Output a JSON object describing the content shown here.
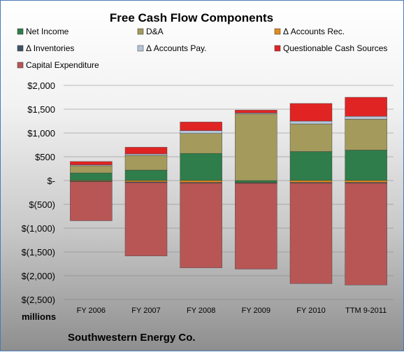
{
  "chart_data": {
    "type": "bar",
    "stacked": true,
    "title": "Free Cash Flow Components",
    "units_label": "millions",
    "company": "Southwestern Energy Co.",
    "categories": [
      "FY 2006",
      "FY 2007",
      "FY 2008",
      "FY 2009",
      "FY 2010",
      "TTM 9-2011"
    ],
    "ylim": [
      -2500,
      2000
    ],
    "yticks": [
      {
        "value": 2000,
        "label": "$2,000"
      },
      {
        "value": 1500,
        "label": "$1,500"
      },
      {
        "value": 1000,
        "label": "$1,000"
      },
      {
        "value": 500,
        "label": "$500"
      },
      {
        "value": 0,
        "label": "$-"
      },
      {
        "value": -500,
        "label": "$(500)"
      },
      {
        "value": -1000,
        "label": "$(1,000)"
      },
      {
        "value": -1500,
        "label": "$(1,500)"
      },
      {
        "value": -2000,
        "label": "$(2,000)"
      },
      {
        "value": -2500,
        "label": "$(2,500)"
      }
    ],
    "legend_placement": "top",
    "series": [
      {
        "name": "Net Income",
        "color": "#2e7d4a",
        "values": [
          160,
          220,
          570,
          -40,
          610,
          640
        ]
      },
      {
        "name": "D&A",
        "color": "#a39a5c",
        "values": [
          150,
          310,
          420,
          1400,
          580,
          650
        ]
      },
      {
        "name": "Δ Accounts Rec.",
        "color": "#e08a1e",
        "values": [
          -15,
          -30,
          -40,
          -10,
          -40,
          -40
        ]
      },
      {
        "name": "Δ Inventories",
        "color": "#3e5468",
        "values": [
          -10,
          -15,
          -15,
          -10,
          -15,
          -15
        ]
      },
      {
        "name": "Δ Accounts Pay.",
        "color": "#b4c4d8",
        "values": [
          20,
          30,
          60,
          20,
          60,
          60
        ]
      },
      {
        "name": "Questionable Cash Sources",
        "color": "#e02424",
        "values": [
          70,
          140,
          180,
          60,
          370,
          400
        ]
      },
      {
        "name": "Capital Expenditure",
        "color": "#b85656",
        "values": [
          -820,
          -1540,
          -1780,
          -1800,
          -2110,
          -2140
        ]
      }
    ]
  }
}
